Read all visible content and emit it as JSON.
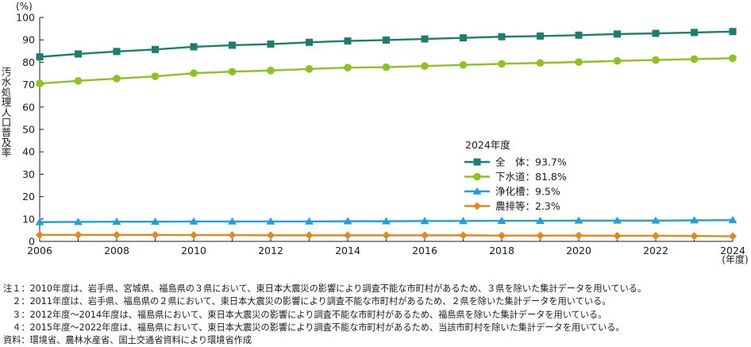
{
  "chart_data": {
    "type": "line",
    "unit_label": "(%)",
    "ylabel": "汚水処理人口普及率",
    "xunit_label": "(年度)",
    "ylim": [
      0,
      100
    ],
    "yticks": [
      0,
      10,
      20,
      30,
      40,
      50,
      60,
      70,
      80,
      90,
      100
    ],
    "xlim": [
      2006,
      2024
    ],
    "xticks": [
      2006,
      2008,
      2010,
      2012,
      2014,
      2016,
      2018,
      2020,
      2022,
      2024
    ],
    "x": [
      2006,
      2007,
      2008,
      2009,
      2010,
      2011,
      2012,
      2013,
      2014,
      2015,
      2016,
      2017,
      2018,
      2019,
      2020,
      2021,
      2022,
      2023,
      2024
    ],
    "legend_title": "2024年度",
    "legend_position": "center-right",
    "grid": false,
    "series": [
      {
        "name": "全　体",
        "legend_text": "全　体：93.7%",
        "color": "#1b7f6e",
        "marker": "square",
        "values": [
          82.4,
          83.7,
          84.8,
          85.7,
          86.9,
          87.6,
          88.1,
          88.9,
          89.5,
          89.9,
          90.4,
          90.9,
          91.4,
          91.7,
          92.1,
          92.6,
          92.9,
          93.3,
          93.7
        ]
      },
      {
        "name": "下水道",
        "legend_text": "下水道：81.8%",
        "color": "#8dc21f",
        "marker": "circle",
        "values": [
          70.5,
          71.7,
          72.7,
          73.7,
          75.1,
          75.8,
          76.3,
          77.0,
          77.6,
          77.8,
          78.3,
          78.8,
          79.3,
          79.7,
          80.1,
          80.6,
          81.0,
          81.4,
          81.8
        ]
      },
      {
        "name": "浄化槽",
        "legend_text": "浄化槽：9.5%",
        "color": "#1fa0d8",
        "marker": "triangle",
        "values": [
          8.6,
          8.7,
          8.8,
          8.8,
          8.9,
          8.9,
          8.9,
          8.9,
          9.0,
          9.0,
          9.1,
          9.1,
          9.2,
          9.2,
          9.3,
          9.3,
          9.3,
          9.4,
          9.5
        ]
      },
      {
        "name": "農排等",
        "legend_text": "農排等：2.3%",
        "color": "#e08a1e",
        "marker": "diamond",
        "values": [
          2.9,
          2.9,
          2.9,
          2.9,
          2.8,
          2.8,
          2.7,
          2.7,
          2.7,
          2.7,
          2.7,
          2.7,
          2.6,
          2.6,
          2.6,
          2.5,
          2.5,
          2.4,
          2.3
        ]
      }
    ]
  },
  "notes": [
    "注１：2010年度は、岩手県、宮城県、福島県の３県において、東日本大震災の影響により調査不能な市町村があるため、３県を除いた集計データを用いている。",
    "　２：2011年度は、岩手県、福島県の２県において、東日本大震災の影響により調査不能な市町村があるため、２県を除いた集計データを用いている。",
    "　３：2012年度～2014年度は、福島県において、東日本大震災の影響により調査不能な市町村があるため、福島県を除いた集計データを用いている。",
    "　４：2015年度～2022年度は、福島県において、東日本大震災の影響により調査不能な市町村があるため、当該市町村を除いた集計データを用いている。",
    "資料：環境省、農林水産省、国土交通省資料により環境省作成"
  ]
}
